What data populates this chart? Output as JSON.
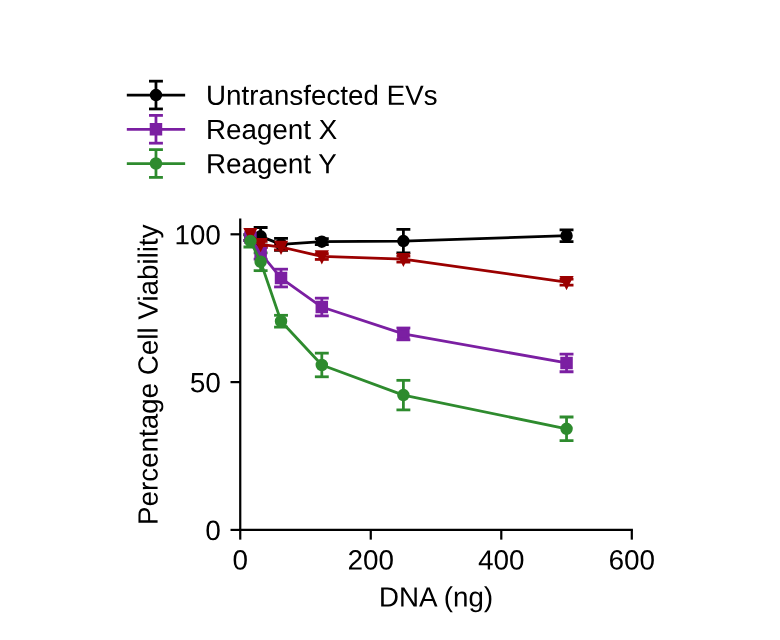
{
  "chart_data": {
    "type": "line",
    "xlabel": "DNA (ng)",
    "ylabel": "Percentage Cell Viability",
    "xlim": [
      0,
      600
    ],
    "xticks": [
      0,
      200,
      400,
      600
    ],
    "ylim": [
      0,
      105
    ],
    "yticks": [
      0,
      50,
      100
    ],
    "grid": false,
    "legend": "top",
    "line_style": "solid",
    "x": [
      15.6,
      31.25,
      62.5,
      125,
      250,
      500
    ],
    "series": [
      {
        "name": "Untransfected EVs",
        "color": "#000000",
        "marker": "circle",
        "values": [
          98.9,
          99.3,
          96.6,
          97.5,
          97.7,
          99.5
        ],
        "errors": [
          1,
          3,
          2,
          1,
          4,
          2
        ]
      },
      {
        "name": "Reagent X",
        "color": "#7b1fa2",
        "marker": "square",
        "values": [
          98.9,
          93.6,
          85.2,
          75.4,
          66.3,
          56.5
        ],
        "errors": [
          1,
          2,
          3,
          3,
          2,
          3
        ]
      },
      {
        "color": "#9b0000",
        "marker": "triangle",
        "values": [
          100,
          96.6,
          95.7,
          92.5,
          91.6,
          83.8
        ],
        "errors": [
          null,
          1,
          1,
          1,
          1,
          1
        ]
      },
      {
        "name": "Reagent Y",
        "color": "#2e8b2e",
        "marker": "circle",
        "values": [
          97.7,
          90.7,
          70.6,
          55.8,
          45.6,
          34.2
        ],
        "errors": [
          2,
          3,
          2,
          4,
          5,
          4
        ]
      }
    ]
  }
}
